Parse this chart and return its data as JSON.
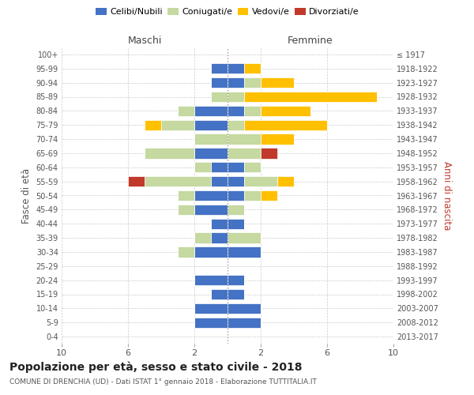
{
  "age_groups": [
    "0-4",
    "5-9",
    "10-14",
    "15-19",
    "20-24",
    "25-29",
    "30-34",
    "35-39",
    "40-44",
    "45-49",
    "50-54",
    "55-59",
    "60-64",
    "65-69",
    "70-74",
    "75-79",
    "80-84",
    "85-89",
    "90-94",
    "95-99",
    "100+"
  ],
  "birth_years": [
    "2013-2017",
    "2008-2012",
    "2003-2007",
    "1998-2002",
    "1993-1997",
    "1988-1992",
    "1983-1987",
    "1978-1982",
    "1973-1977",
    "1968-1972",
    "1963-1967",
    "1958-1962",
    "1953-1957",
    "1948-1952",
    "1943-1947",
    "1938-1942",
    "1933-1937",
    "1928-1932",
    "1923-1927",
    "1918-1922",
    "≤ 1917"
  ],
  "maschi": {
    "celibi": [
      0,
      2,
      2,
      1,
      2,
      0,
      2,
      1,
      1,
      2,
      2,
      1,
      1,
      2,
      0,
      2,
      2,
      0,
      1,
      1,
      0
    ],
    "coniugati": [
      0,
      0,
      0,
      0,
      0,
      0,
      1,
      1,
      0,
      1,
      1,
      4,
      1,
      3,
      2,
      2,
      1,
      1,
      0,
      0,
      0
    ],
    "vedovi": [
      0,
      0,
      0,
      0,
      0,
      0,
      0,
      0,
      0,
      0,
      0,
      0,
      0,
      0,
      0,
      1,
      0,
      0,
      0,
      0,
      0
    ],
    "divorziati": [
      0,
      0,
      0,
      0,
      0,
      0,
      0,
      0,
      0,
      0,
      0,
      1,
      0,
      0,
      0,
      0,
      0,
      0,
      0,
      0,
      0
    ]
  },
  "femmine": {
    "nubili": [
      0,
      2,
      2,
      1,
      1,
      0,
      2,
      0,
      1,
      0,
      1,
      1,
      1,
      0,
      0,
      0,
      1,
      0,
      1,
      1,
      0
    ],
    "coniugate": [
      0,
      0,
      0,
      0,
      0,
      0,
      0,
      2,
      0,
      1,
      1,
      2,
      1,
      2,
      2,
      1,
      1,
      1,
      1,
      0,
      0
    ],
    "vedove": [
      0,
      0,
      0,
      0,
      0,
      0,
      0,
      0,
      0,
      0,
      1,
      1,
      0,
      0,
      2,
      5,
      3,
      8,
      2,
      1,
      0
    ],
    "divorziate": [
      0,
      0,
      0,
      0,
      0,
      0,
      0,
      0,
      0,
      0,
      0,
      0,
      0,
      1,
      0,
      0,
      0,
      0,
      0,
      0,
      0
    ]
  },
  "colors": {
    "celibi_nubili": "#4472c4",
    "coniugati": "#c5d9a0",
    "vedovi": "#ffc000",
    "divorziati": "#c0392b"
  },
  "title": "Popolazione per età, sesso e stato civile - 2018",
  "subtitle": "COMUNE DI DRENCHIA (UD) - Dati ISTAT 1° gennaio 2018 - Elaborazione TUTTITALIA.IT",
  "xlabel_left": "Maschi",
  "xlabel_right": "Femmine",
  "ylabel_left": "Fasce di età",
  "ylabel_right": "Anni di nascita",
  "xlim": 10,
  "xtick_vals": [
    -10,
    -6,
    -2,
    2,
    6,
    10
  ],
  "background_color": "#ffffff",
  "grid_color": "#cccccc"
}
